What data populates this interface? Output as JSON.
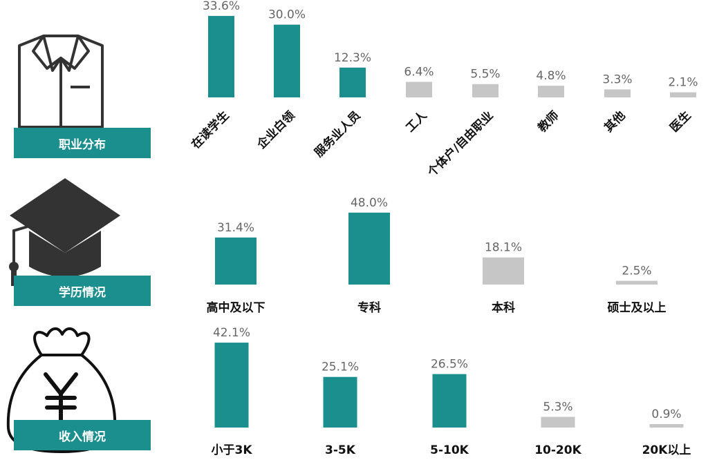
{
  "sections": {
    "occupation": {
      "title": "职业分布"
    },
    "education": {
      "title": "学历情况"
    },
    "income": {
      "title": "收入情况"
    }
  },
  "colors": {
    "teal": "#1b8e8e",
    "gray": "#c6c6c6",
    "icon": "#333333"
  },
  "icons": [
    "shirt-icon",
    "graduation-cap-icon",
    "money-bag-icon"
  ],
  "chart_data": [
    {
      "type": "bar",
      "categories": [
        "在读学生",
        "企业白领",
        "服务业人员",
        "工人",
        "个体户/自由职业",
        "教师",
        "其他",
        "医生"
      ],
      "values": [
        33.6,
        30.0,
        12.3,
        6.4,
        5.5,
        4.8,
        3.3,
        2.1
      ],
      "labels": [
        "33.6%",
        "30.0%",
        "12.3%",
        "6.4%",
        "5.5%",
        "4.8%",
        "3.3%",
        "2.1%"
      ],
      "highlight": [
        true,
        true,
        true,
        false,
        false,
        false,
        false,
        false
      ],
      "title": "职业分布"
    },
    {
      "type": "bar",
      "categories": [
        "高中及以下",
        "专科",
        "本科",
        "硕士及以上"
      ],
      "values": [
        31.4,
        48.0,
        18.1,
        2.5
      ],
      "labels": [
        "31.4%",
        "48.0%",
        "18.1%",
        "2.5%"
      ],
      "highlight": [
        true,
        true,
        false,
        false
      ],
      "title": "学历情况"
    },
    {
      "type": "bar",
      "categories": [
        "小于3K",
        "3-5K",
        "5-10K",
        "10-20K",
        "20K以上"
      ],
      "values": [
        42.1,
        25.1,
        26.5,
        5.3,
        0.9
      ],
      "labels": [
        "42.1%",
        "25.1%",
        "26.5%",
        "5.3%",
        "0.9%"
      ],
      "highlight": [
        true,
        true,
        true,
        false,
        false
      ],
      "title": "收入情况"
    }
  ]
}
